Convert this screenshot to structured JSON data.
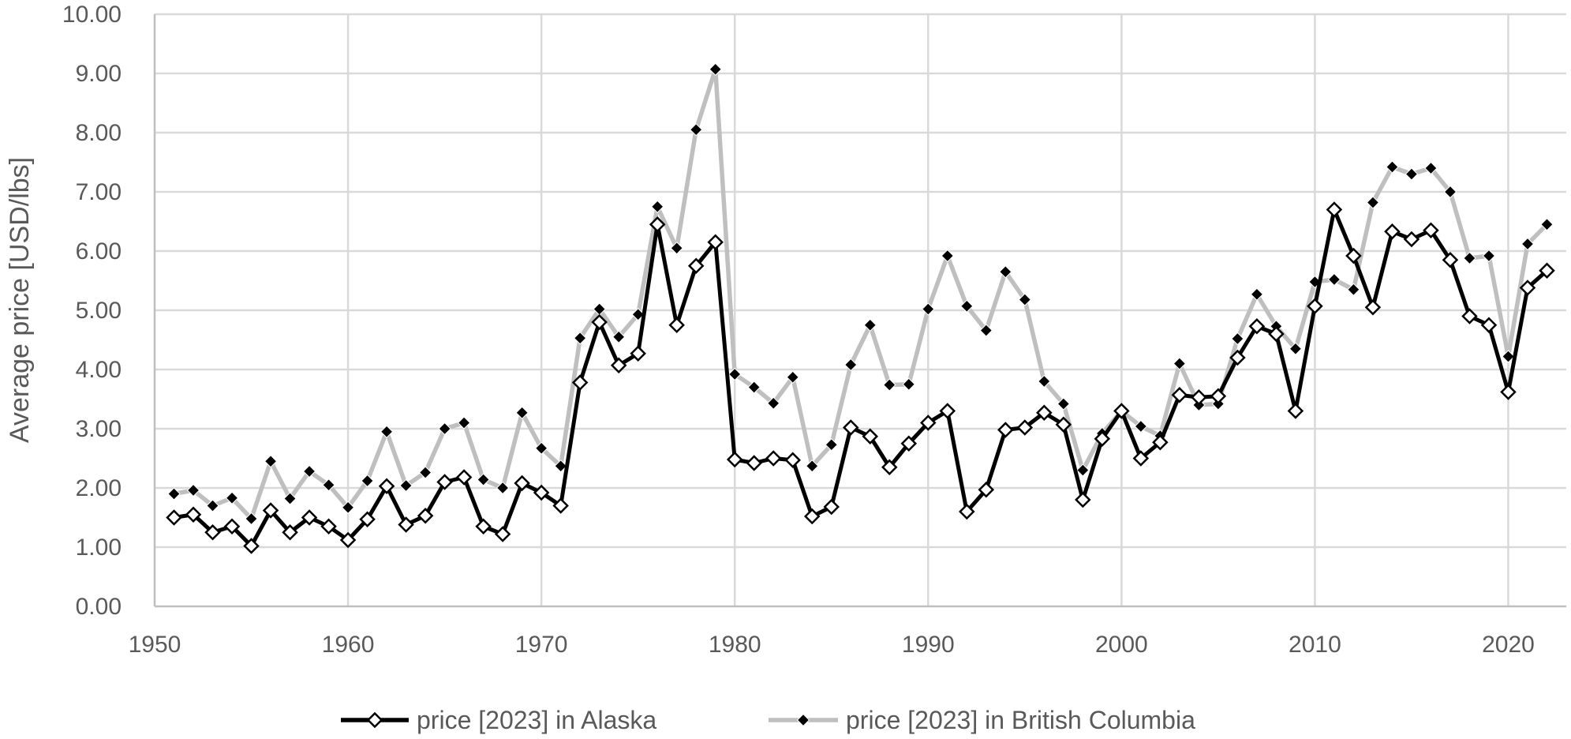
{
  "chart_data": {
    "type": "line",
    "title": "",
    "xlabel": "",
    "ylabel": "Average price [USD/lbs]",
    "xlim": [
      1950,
      2023
    ],
    "ylim": [
      0,
      10
    ],
    "x_ticks": [
      1950,
      1960,
      1970,
      1980,
      1990,
      2000,
      2010,
      2020
    ],
    "y_ticks": [
      "0.00",
      "1.00",
      "2.00",
      "3.00",
      "4.00",
      "5.00",
      "6.00",
      "7.00",
      "8.00",
      "9.00",
      "10.00"
    ],
    "grid": "both",
    "legend_position": "bottom",
    "x": [
      1951,
      1952,
      1953,
      1954,
      1955,
      1956,
      1957,
      1958,
      1959,
      1960,
      1961,
      1962,
      1963,
      1964,
      1965,
      1966,
      1967,
      1968,
      1969,
      1970,
      1971,
      1972,
      1973,
      1974,
      1975,
      1976,
      1977,
      1978,
      1979,
      1980,
      1981,
      1982,
      1983,
      1984,
      1985,
      1986,
      1987,
      1988,
      1989,
      1990,
      1991,
      1992,
      1993,
      1994,
      1995,
      1996,
      1997,
      1998,
      1999,
      2000,
      2001,
      2002,
      2003,
      2004,
      2005,
      2006,
      2007,
      2008,
      2009,
      2010,
      2011,
      2012,
      2013,
      2014,
      2015,
      2016,
      2017,
      2018,
      2019,
      2020,
      2021,
      2022
    ],
    "series": [
      {
        "name": "price [2023] in Alaska",
        "color": "#000000",
        "marker": "hollow-diamond",
        "values": [
          1.5,
          1.55,
          1.25,
          1.35,
          1.02,
          1.62,
          1.25,
          1.5,
          1.35,
          1.12,
          1.47,
          2.03,
          1.38,
          1.53,
          2.1,
          2.18,
          1.35,
          1.22,
          2.08,
          1.92,
          1.7,
          3.78,
          4.8,
          4.07,
          4.27,
          6.45,
          4.75,
          5.75,
          6.15,
          2.48,
          2.42,
          2.5,
          2.47,
          1.52,
          1.68,
          3.02,
          2.87,
          2.35,
          2.75,
          3.1,
          3.3,
          1.6,
          1.97,
          2.98,
          3.02,
          3.27,
          3.07,
          1.8,
          2.83,
          3.3,
          2.5,
          2.77,
          3.57,
          3.53,
          3.55,
          4.2,
          4.73,
          4.6,
          3.3,
          5.07,
          6.7,
          5.92,
          5.05,
          6.33,
          6.2,
          6.35,
          5.85,
          4.9,
          4.75,
          3.62,
          5.38,
          5.67
        ]
      },
      {
        "name": "price [2023] in British Columbia",
        "color": "#bfbfbf",
        "marker": "filled-diamond",
        "values": [
          1.9,
          1.96,
          1.7,
          1.83,
          1.48,
          2.45,
          1.82,
          2.28,
          2.05,
          1.67,
          2.12,
          2.95,
          2.04,
          2.26,
          3.0,
          3.1,
          2.14,
          2.0,
          3.27,
          2.67,
          2.37,
          4.53,
          5.02,
          4.55,
          4.93,
          6.75,
          6.05,
          8.05,
          9.07,
          3.92,
          3.7,
          3.43,
          3.87,
          2.37,
          2.73,
          4.08,
          4.75,
          3.74,
          3.75,
          5.02,
          5.92,
          5.07,
          4.66,
          5.65,
          5.18,
          3.8,
          3.42,
          2.3,
          2.92,
          3.3,
          3.04,
          2.88,
          4.1,
          3.4,
          3.42,
          4.52,
          5.27,
          4.73,
          4.35,
          5.48,
          5.52,
          5.35,
          6.82,
          7.42,
          7.3,
          7.4,
          7.0,
          5.88,
          5.92,
          4.22,
          6.12,
          6.45
        ]
      }
    ]
  }
}
